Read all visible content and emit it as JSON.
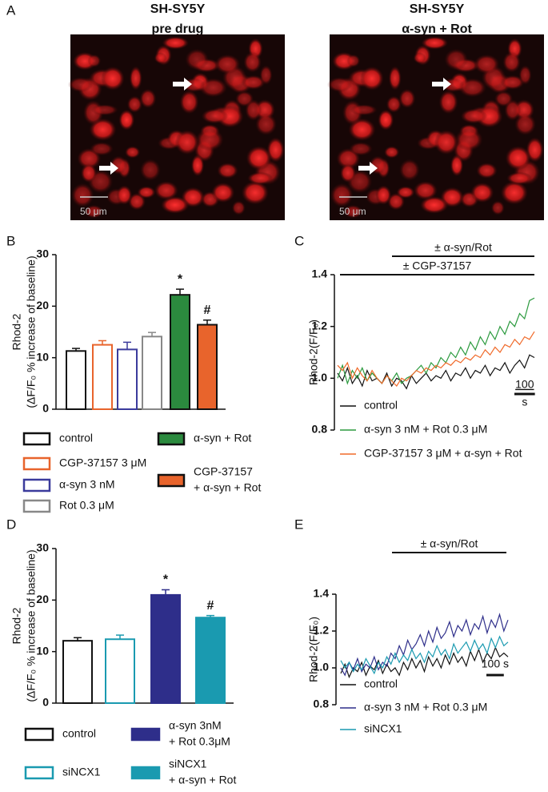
{
  "panel_labels": [
    "A",
    "B",
    "C",
    "D",
    "E"
  ],
  "images": [
    {
      "title": [
        "SH-SY5Y",
        "pre drug"
      ],
      "scale_bar": "50 μm"
    },
    {
      "title": [
        "SH-SY5Y",
        "α-syn + Rot"
      ],
      "scale_bar": "50 μm"
    }
  ],
  "chart_data": [
    {
      "type": "bar",
      "ylabel": [
        "Rhod-2",
        "(ΔF/F₀ % increase of baseline)"
      ],
      "categories": [
        [
          "control"
        ],
        [
          "CGP-37157 3 μM"
        ],
        [
          "α-syn 3 nM"
        ],
        [
          "Rot 0.3 μM"
        ],
        [
          "α-syn + Rot"
        ],
        [
          "CGP-37157",
          "+ α-syn + Rot"
        ]
      ],
      "values": [
        11.3,
        12.5,
        11.6,
        14.1,
        22.2,
        16.4
      ],
      "errors": [
        0.5,
        0.8,
        1.4,
        0.8,
        1.1,
        0.9
      ],
      "edgecolors": [
        "#111111",
        "#e8642c",
        "#3b3b9c",
        "#888888",
        "#111111",
        "#111111"
      ],
      "fills": [
        "#ffffff",
        "#ffffff",
        "#ffffff",
        "#ffffff",
        "#2b8a3e",
        "#e8642c"
      ],
      "markers": [
        null,
        null,
        null,
        null,
        "*",
        "#"
      ],
      "ylim": [
        0,
        30
      ],
      "yticks": [
        0,
        10,
        20,
        30
      ]
    },
    {
      "type": "line",
      "ylabel": "Rhod-2(F/F₀)",
      "annotations": [
        "± α-syn/Rot",
        "± CGP-37157"
      ],
      "scale_bar": {
        "value": 100,
        "label": [
          "100",
          "s"
        ]
      },
      "x": [
        0,
        24,
        48,
        72,
        96,
        120,
        144,
        168,
        192,
        216,
        240,
        264,
        288,
        312,
        336,
        360,
        384,
        408,
        432,
        456,
        480,
        504,
        528,
        552,
        576,
        600,
        624,
        648,
        672,
        696,
        720,
        744,
        768,
        792,
        816,
        840,
        864,
        888,
        912,
        936,
        960
      ],
      "series": [
        {
          "name": "control",
          "color": "#111111",
          "values": [
            1.02,
            0.99,
            1.04,
            0.98,
            1.01,
            0.97,
            1.03,
            0.99,
            1.0,
            0.98,
            1.02,
            0.97,
            1.0,
            0.99,
            0.96,
            1.01,
            0.98,
            1.0,
            1.02,
            0.99,
            1.01,
            1.0,
            1.03,
            0.99,
            1.02,
            1.01,
            1.04,
            1.0,
            1.03,
            1.02,
            1.05,
            1.01,
            1.04,
            1.03,
            1.06,
            1.02,
            1.05,
            1.07,
            1.04,
            1.09,
            1.08
          ]
        },
        {
          "name": "α-syn 3 nM + Rot 0.3 μM",
          "color": "#2b9a3e",
          "values": [
            1.0,
            1.05,
            0.98,
            1.03,
            1.0,
            1.04,
            0.99,
            1.02,
            1.0,
            0.98,
            1.01,
            0.99,
            1.02,
            0.98,
            1.0,
            1.01,
            1.03,
            1.05,
            1.02,
            1.06,
            1.04,
            1.08,
            1.06,
            1.1,
            1.08,
            1.12,
            1.09,
            1.14,
            1.11,
            1.16,
            1.13,
            1.18,
            1.15,
            1.2,
            1.17,
            1.22,
            1.2,
            1.25,
            1.23,
            1.3,
            1.31
          ]
        },
        {
          "name": "CGP-37157 3 μM + α-syn + Rot",
          "color": "#f06a2a",
          "values": [
            1.05,
            1.03,
            1.06,
            1.0,
            1.04,
            1.01,
            0.99,
            1.03,
            1.0,
            0.98,
            1.01,
            0.99,
            0.97,
            1.0,
            0.99,
            1.01,
            1.03,
            1.02,
            1.04,
            1.03,
            1.05,
            1.04,
            1.06,
            1.05,
            1.07,
            1.06,
            1.08,
            1.07,
            1.09,
            1.08,
            1.11,
            1.09,
            1.12,
            1.1,
            1.13,
            1.12,
            1.15,
            1.13,
            1.16,
            1.15,
            1.18
          ]
        }
      ],
      "ylim": [
        0.8,
        1.4
      ],
      "yticks": [
        0.8,
        {
          "value": 1,
          "label": "1.0"
        },
        1.2,
        1.4
      ]
    },
    {
      "type": "bar",
      "ylabel": [
        "Rhod-2",
        "(ΔF/F₀ % increase of baseline)"
      ],
      "categories": [
        [
          "control"
        ],
        [
          "siNCX1"
        ],
        [
          "α-syn 3nM",
          "+ Rot 0.3μM"
        ],
        [
          "siNCX1",
          "+ α-syn + Rot"
        ]
      ],
      "values": [
        12.1,
        12.4,
        21.0,
        16.6
      ],
      "errors": [
        0.6,
        0.8,
        1.0,
        0.4
      ],
      "edgecolors": [
        "#111111",
        "#1a9ab0",
        "#2e2e8a",
        "#1a9ab0"
      ],
      "fills": [
        "#ffffff",
        "#ffffff",
        "#2e2e8a",
        "#1a9ab0"
      ],
      "markers": [
        null,
        null,
        "*",
        "#"
      ],
      "ylim": [
        0,
        30
      ],
      "yticks": [
        0,
        10,
        20,
        30
      ]
    },
    {
      "type": "line",
      "ylabel": "Rhod-2(F/F₀)",
      "annotations": [
        "± α-syn/Rot"
      ],
      "scale_bar": {
        "value": 100,
        "label": [
          "100 s"
        ]
      },
      "x": [
        0,
        24,
        48,
        72,
        96,
        120,
        144,
        168,
        192,
        216,
        240,
        264,
        288,
        312,
        336,
        360,
        384,
        408,
        432,
        456,
        480,
        504,
        528,
        552,
        576,
        600,
        624,
        648,
        672,
        696,
        720,
        744,
        768,
        792,
        816,
        840,
        864,
        888,
        912,
        936,
        960
      ],
      "series": [
        {
          "name": "control",
          "color": "#111111",
          "values": [
            0.97,
            1.02,
            0.95,
            1.0,
            0.98,
            1.03,
            0.96,
            1.01,
            0.99,
            1.04,
            0.97,
            1.02,
            0.98,
            1.0,
            0.96,
            1.03,
            0.99,
            1.05,
            1.0,
            1.04,
            0.98,
            1.06,
            1.01,
            1.05,
            1.0,
            1.07,
            1.02,
            1.08,
            1.03,
            1.06,
            1.01,
            1.09,
            1.04,
            1.1,
            1.03,
            1.08,
            1.05,
            1.11,
            1.06,
            1.08,
            1.06
          ]
        },
        {
          "name": "α-syn 3 nM + Rot 0.3 μM",
          "color": "#2e2e8a",
          "values": [
            1.0,
            0.96,
            1.03,
            0.99,
            1.05,
            0.98,
            1.02,
            1.0,
            1.06,
            0.99,
            1.03,
            1.01,
            1.08,
            1.05,
            1.12,
            1.07,
            1.15,
            1.1,
            1.13,
            1.18,
            1.12,
            1.2,
            1.14,
            1.22,
            1.16,
            1.19,
            1.25,
            1.17,
            1.23,
            1.2,
            1.26,
            1.18,
            1.24,
            1.21,
            1.28,
            1.19,
            1.26,
            1.22,
            1.29,
            1.2,
            1.26
          ]
        },
        {
          "name": "siNCX1",
          "color": "#1a9ab0",
          "values": [
            1.04,
            1.0,
            1.03,
            0.98,
            1.02,
            0.99,
            1.05,
            1.01,
            0.97,
            1.03,
            1.0,
            1.06,
            1.02,
            1.08,
            1.03,
            1.07,
            1.04,
            1.1,
            1.05,
            1.08,
            1.03,
            1.09,
            1.06,
            1.12,
            1.07,
            1.1,
            1.05,
            1.13,
            1.08,
            1.11,
            1.14,
            1.09,
            1.15,
            1.1,
            1.13,
            1.08,
            1.16,
            1.11,
            1.17,
            1.12,
            1.14
          ]
        }
      ],
      "ylim": [
        0.8,
        1.4
      ],
      "yticks": [
        0.8,
        {
          "value": 1,
          "label": "1.0"
        },
        1.2,
        1.4
      ]
    }
  ]
}
